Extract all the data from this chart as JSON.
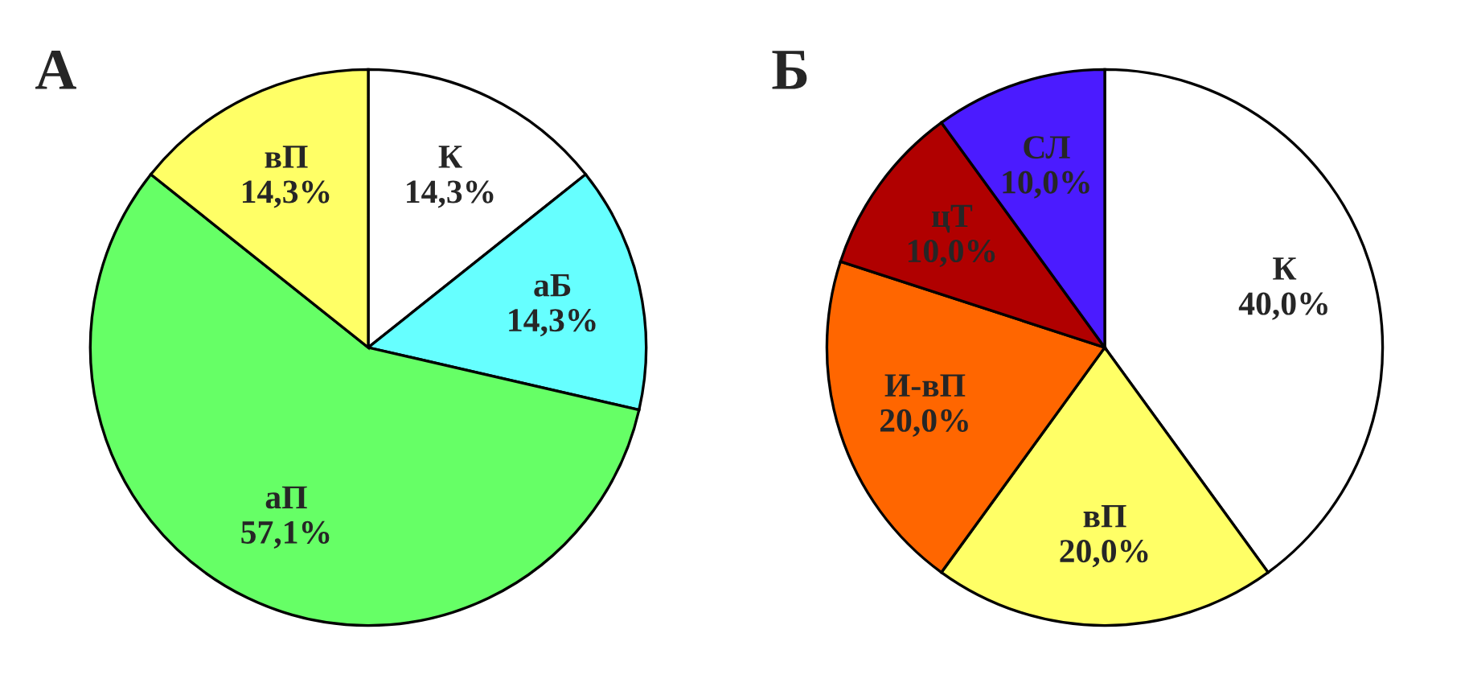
{
  "chart_data": [
    {
      "type": "pie",
      "title": "А",
      "categories": [
        "К",
        "аБ",
        "аП",
        "вП"
      ],
      "values": [
        14.3,
        14.3,
        57.1,
        14.3
      ],
      "value_labels": [
        "14,3%",
        "14,3%",
        "57,1%",
        "14,3%"
      ],
      "colors": [
        "#ffffff",
        "#66ffff",
        "#66ff66",
        "#ffff66"
      ]
    },
    {
      "type": "pie",
      "title": "Б",
      "categories": [
        "К",
        "вП",
        "И-вП",
        "цТ",
        "СЛ"
      ],
      "values": [
        40.0,
        20.0,
        20.0,
        10.0,
        10.0
      ],
      "value_labels": [
        "40,0%",
        "20,0%",
        "20,0%",
        "10,0%",
        "10,0%"
      ],
      "colors": [
        "#ffffff",
        "#ffff66",
        "#ff6600",
        "#b00000",
        "#4b1bff"
      ]
    }
  ]
}
